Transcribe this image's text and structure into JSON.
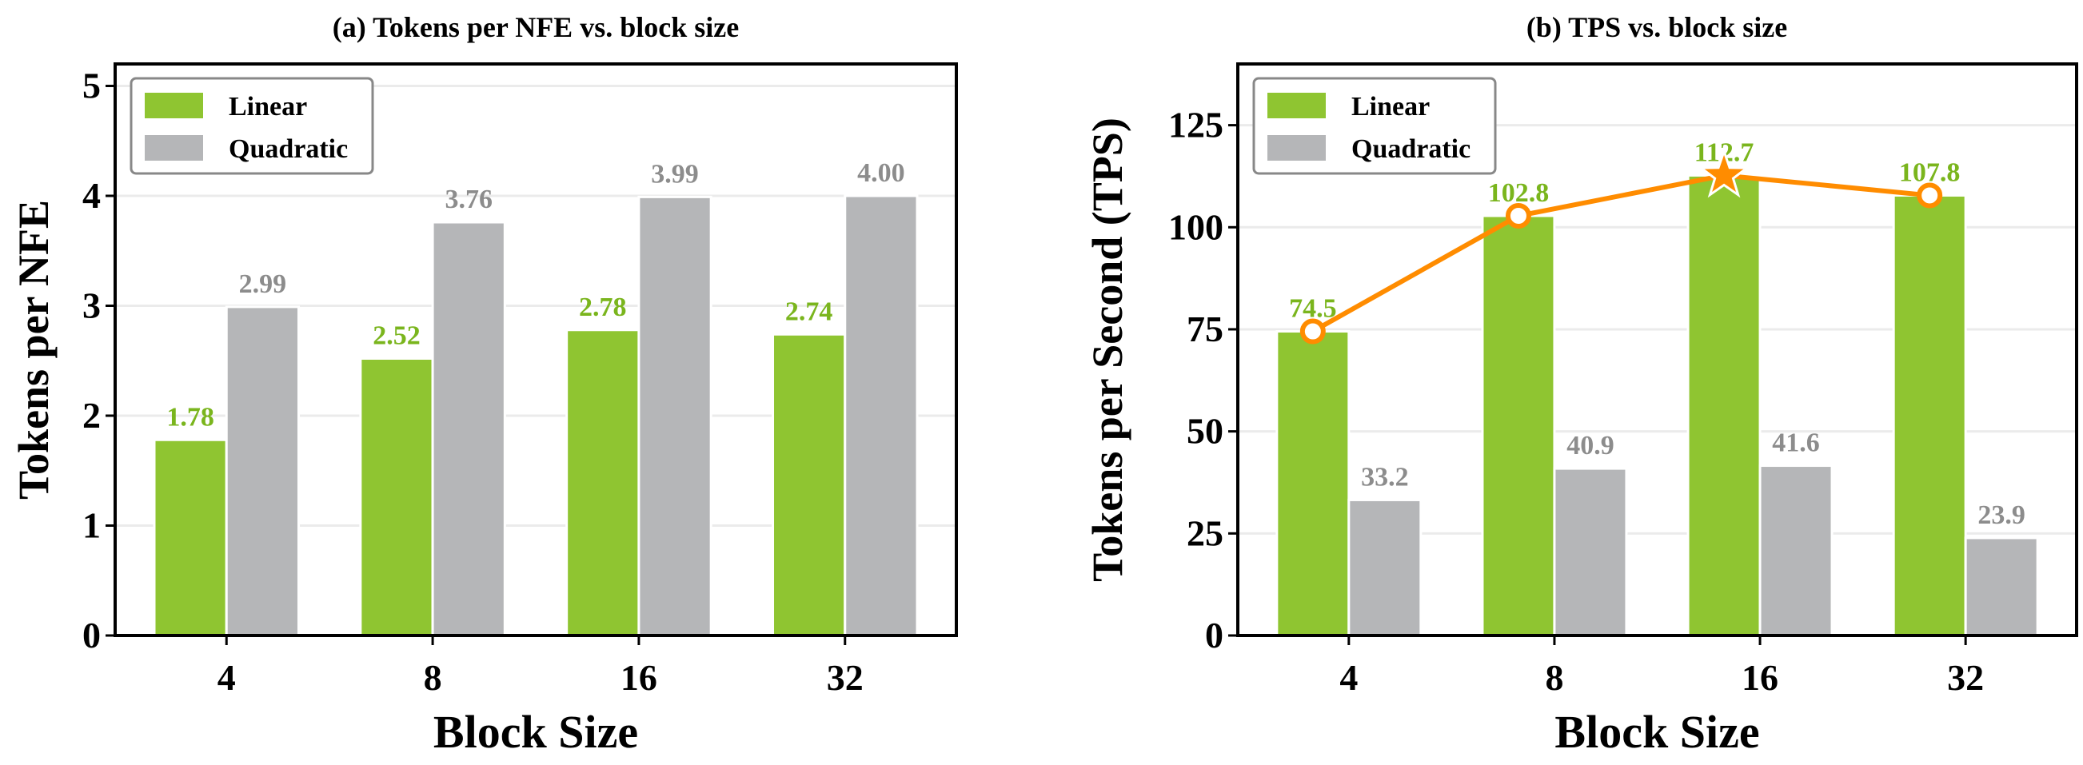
{
  "chart_data": [
    {
      "type": "bar",
      "title": "(a) Tokens per NFE vs. block size",
      "xlabel": "Block Size",
      "ylabel": "Tokens per NFE",
      "categories": [
        "4",
        "8",
        "16",
        "32"
      ],
      "ylim": [
        0,
        5.2
      ],
      "yticks": [
        "0",
        "1",
        "2",
        "3",
        "4",
        "5"
      ],
      "grid": true,
      "legend": "top-left",
      "series": [
        {
          "name": "Linear",
          "values": [
            1.78,
            2.52,
            2.78,
            2.74
          ],
          "labels": [
            "1.78",
            "2.52",
            "2.78",
            "2.74"
          ],
          "color": "#8fc531",
          "label_color": "#7ab51d"
        },
        {
          "name": "Quadratic",
          "values": [
            2.99,
            3.76,
            3.99,
            4.0
          ],
          "labels": [
            "2.99",
            "3.76",
            "3.99",
            "4.00"
          ],
          "color": "#b5b6b8",
          "label_color": "#8c8c8c"
        }
      ]
    },
    {
      "type": "bar",
      "title": "(b) TPS vs. block size",
      "xlabel": "Block Size",
      "ylabel": "Tokens per Second (TPS)",
      "categories": [
        "4",
        "8",
        "16",
        "32"
      ],
      "ylim": [
        0,
        140
      ],
      "yticks": [
        "0",
        "25",
        "50",
        "75",
        "100",
        "125"
      ],
      "grid": true,
      "legend": "top-left",
      "series": [
        {
          "name": "Linear",
          "values": [
            74.5,
            102.8,
            112.7,
            107.8
          ],
          "labels": [
            "74.5",
            "102.8",
            "112.7",
            "107.8"
          ],
          "color": "#8fc531",
          "label_color": "#7ab51d"
        },
        {
          "name": "Quadratic",
          "values": [
            33.2,
            40.9,
            41.6,
            23.9
          ],
          "labels": [
            "33.2",
            "40.9",
            "41.6",
            "23.9"
          ],
          "color": "#b5b6b8",
          "label_color": "#8c8c8c"
        }
      ],
      "overlay_line": {
        "series": "Linear",
        "values": [
          74.5,
          102.8,
          112.7,
          107.8
        ],
        "color": "#ff8c00",
        "max_marker": "star"
      }
    }
  ]
}
